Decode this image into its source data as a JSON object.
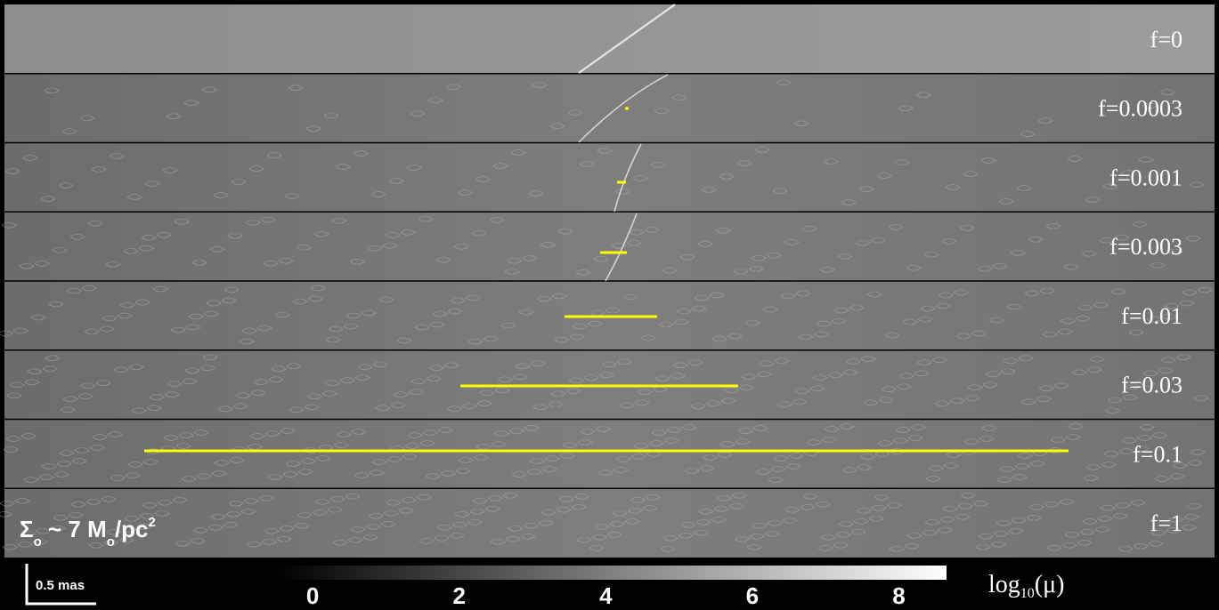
{
  "panels": [
    {
      "label": "f=0"
    },
    {
      "label": "f=0.0003"
    },
    {
      "label": "f=0.001"
    },
    {
      "label": "f=0.003"
    },
    {
      "label": "f=0.01"
    },
    {
      "label": "f=0.03"
    },
    {
      "label": "f=0.1"
    },
    {
      "label": "f=1"
    }
  ],
  "density_label": {
    "symbol": "Σ",
    "symbol_sub": "o",
    "middle": " ~ 7 M",
    "mass_sub": "o",
    "unit": "/pc",
    "unit_sup": "2"
  },
  "scale_bar": {
    "label": "0.5 mas"
  },
  "colorbar": {
    "label": "log",
    "label_sub": "10",
    "label_tail": "(μ)",
    "lim": [
      -0.5,
      8.65
    ],
    "ticks": [
      0,
      2,
      4,
      6,
      8
    ]
  }
}
